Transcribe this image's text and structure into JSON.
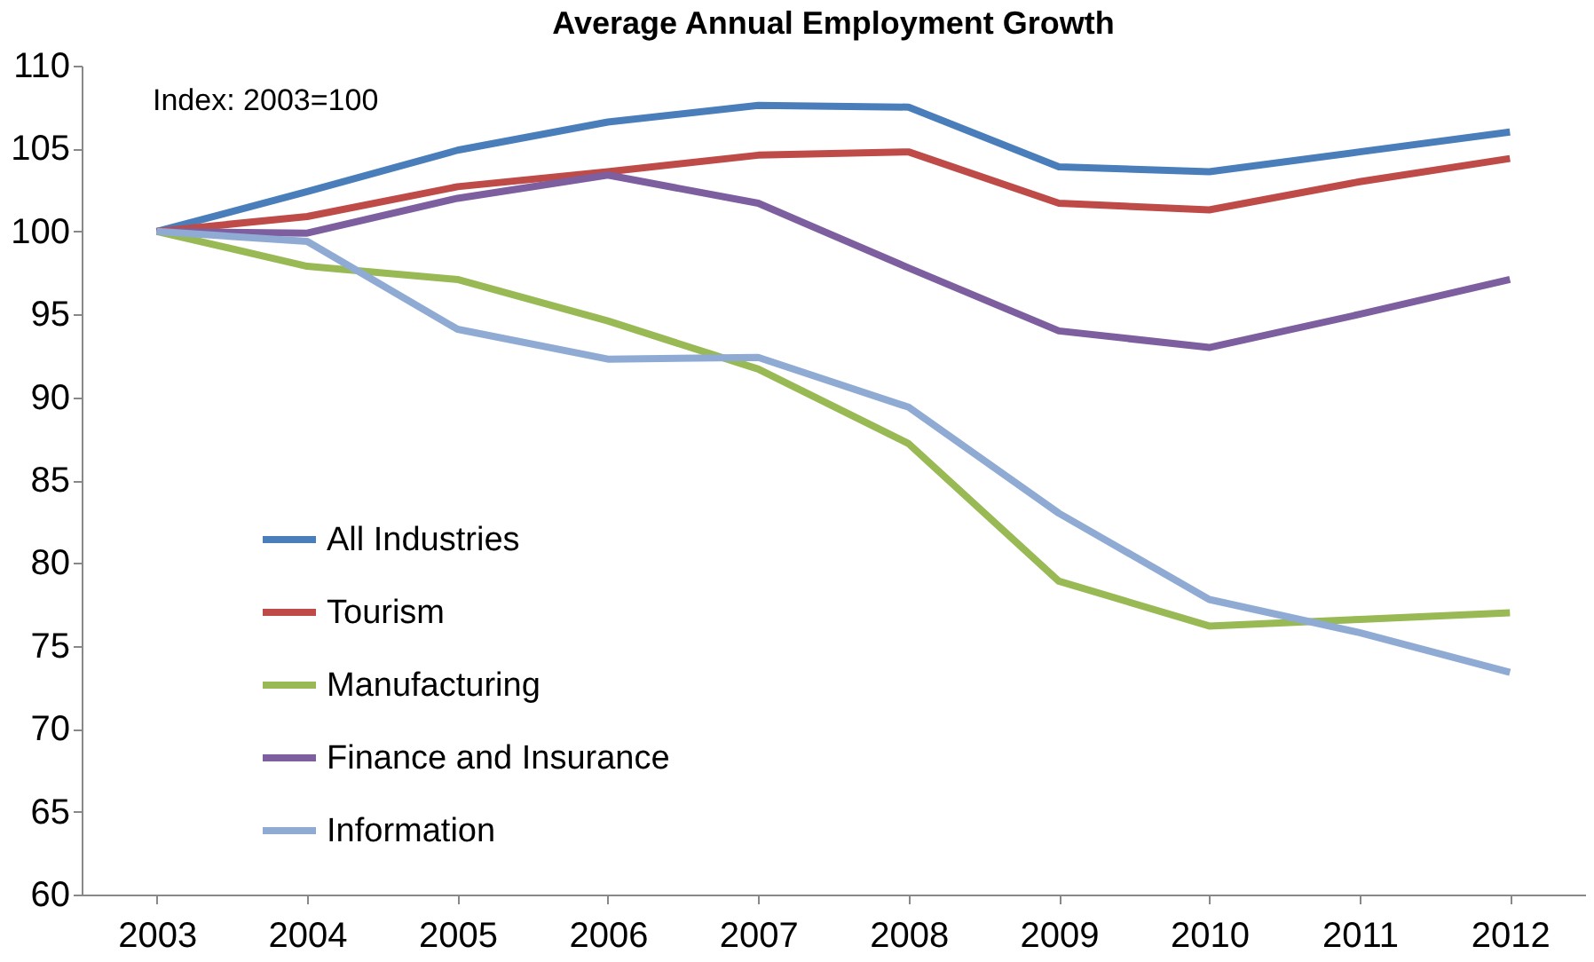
{
  "chart_data": {
    "type": "line",
    "title": "Average Annual Employment Growth",
    "annotations": [
      "Index: 2003=100"
    ],
    "categories": [
      "2003",
      "2004",
      "2005",
      "2006",
      "2007",
      "2008",
      "2009",
      "2010",
      "2011",
      "2012"
    ],
    "series": [
      {
        "name": "All Industries",
        "color": "#4a7ebb",
        "values": [
          100,
          102.4,
          104.9,
          106.6,
          107.6,
          107.5,
          103.9,
          103.6,
          104.8,
          106.0
        ]
      },
      {
        "name": "Tourism",
        "color": "#be4b48",
        "values": [
          100,
          100.9,
          102.7,
          103.6,
          104.6,
          104.8,
          101.7,
          101.3,
          103.0,
          104.4
        ]
      },
      {
        "name": "Manufacturing",
        "color": "#98b954",
        "values": [
          100,
          97.9,
          97.1,
          94.6,
          91.7,
          87.2,
          78.9,
          76.2,
          76.6,
          77.0
        ]
      },
      {
        "name": "Finance and Insurance",
        "color": "#7d5fa0",
        "values": [
          100,
          99.9,
          102.0,
          103.4,
          101.7,
          97.8,
          94.0,
          93.0,
          95.0,
          97.1
        ]
      },
      {
        "name": "Information",
        "color": "#8fabd4",
        "values": [
          100,
          99.4,
          94.1,
          92.3,
          92.4,
          89.4,
          83.0,
          77.8,
          75.8,
          73.4
        ]
      }
    ],
    "ylim": [
      60,
      110
    ],
    "yticks": [
      60,
      65,
      70,
      75,
      80,
      85,
      90,
      95,
      100,
      105,
      110
    ],
    "grid": false,
    "legend": "left",
    "marker": "none",
    "line_style": "solid"
  }
}
